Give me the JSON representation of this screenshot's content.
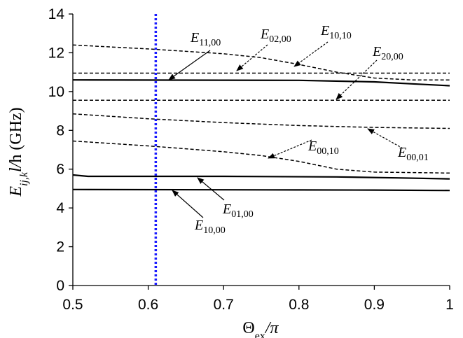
{
  "chart_data": {
    "type": "line",
    "xlabel": "Θex/π",
    "ylabel": "Eij,kl/h (GHz)",
    "xlim": [
      0.5,
      1.0
    ],
    "ylim": [
      0,
      14
    ],
    "xticks": [
      "0.5",
      "0.6",
      "0.7",
      "0.8",
      "0.9",
      "1"
    ],
    "yticks": [
      "0",
      "2",
      "4",
      "6",
      "8",
      "10",
      "12",
      "14"
    ],
    "grid": false,
    "marker_line": {
      "x": 0.61,
      "color": "#1a1aff",
      "style": "dotted"
    },
    "series": [
      {
        "name": "E10,00",
        "style": "solid",
        "x": [
          0.5,
          0.8,
          0.9,
          1.0
        ],
        "y": [
          4.95,
          4.93,
          4.92,
          4.9
        ]
      },
      {
        "name": "E01,00",
        "style": "solid",
        "x": [
          0.5,
          0.52,
          0.7,
          0.85,
          0.93,
          1.0
        ],
        "y": [
          5.7,
          5.63,
          5.63,
          5.6,
          5.55,
          5.5
        ]
      },
      {
        "name": "E11,00",
        "style": "solid",
        "x": [
          0.5,
          0.8,
          0.9,
          0.95,
          1.0
        ],
        "y": [
          10.6,
          10.58,
          10.5,
          10.4,
          10.3
        ]
      },
      {
        "name": "E00,10",
        "style": "dashed",
        "x": [
          0.5,
          0.6,
          0.7,
          0.75,
          0.8,
          0.85,
          0.9,
          1.0
        ],
        "y": [
          7.45,
          7.2,
          6.9,
          6.7,
          6.4,
          6.0,
          5.85,
          5.8
        ]
      },
      {
        "name": "E00,01",
        "style": "dashed",
        "x": [
          0.5,
          0.6,
          0.7,
          0.8,
          0.9,
          1.0
        ],
        "y": [
          8.85,
          8.6,
          8.4,
          8.25,
          8.15,
          8.1
        ]
      },
      {
        "name": "E02,00",
        "style": "dashed",
        "x": [
          0.5,
          1.0
        ],
        "y": [
          9.55,
          9.55
        ]
      },
      {
        "name": "E20,00",
        "style": "dashed",
        "x": [
          0.5,
          1.0
        ],
        "y": [
          10.95,
          10.95
        ]
      },
      {
        "name": "E10,10",
        "style": "dashed",
        "x": [
          0.5,
          0.6,
          0.7,
          0.75,
          0.8,
          0.85,
          0.9,
          0.95,
          1.0
        ],
        "y": [
          12.4,
          12.2,
          11.95,
          11.75,
          11.4,
          11.0,
          10.7,
          10.6,
          10.6
        ]
      }
    ],
    "annotations": [
      {
        "base": "E",
        "sub": "11,00"
      },
      {
        "base": "E",
        "sub": "02,00"
      },
      {
        "base": "E",
        "sub": "10,10"
      },
      {
        "base": "E",
        "sub": "20,00"
      },
      {
        "base": "E",
        "sub": "00,10"
      },
      {
        "base": "E",
        "sub": "00,01"
      },
      {
        "base": "E",
        "sub": "01,00"
      },
      {
        "base": "E",
        "sub": "10,00"
      }
    ]
  }
}
